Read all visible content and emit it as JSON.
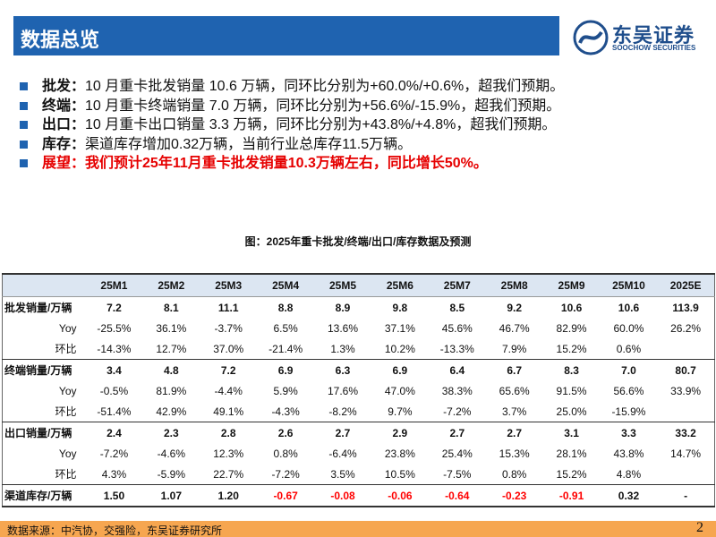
{
  "header": {
    "title": "数据总览",
    "logo_cn": "东吴证券",
    "logo_en": "SOOCHOW SECURITIES"
  },
  "bullets": [
    {
      "label": "批发：",
      "text": "10 月重卡批发销量 10.6 万辆，同环比分别为+60.0%/+0.6%，超我们预期。"
    },
    {
      "label": "终端：",
      "text": "10 月重卡终端销量 7.0 万辆，同环比分别为+56.6%/-15.9%，超我们预期。"
    },
    {
      "label": "出口：",
      "text": "10 月重卡出口销量 3.3 万辆，同环比分别为+43.8%/+4.8%，超我们预期。"
    },
    {
      "label": "库存：",
      "text": "渠道库存增加0.32万辆，当前行业总库存11.5万辆。"
    },
    {
      "label": "展望：",
      "text": "我们预计25年11月重卡批发销量10.3万辆左右，同比增长50%。",
      "emphasis_color": "#e60000"
    }
  ],
  "figure_caption": "图：2025年重卡批发/终端/出口/库存数据及预测",
  "table": {
    "columns": [
      null,
      "25M1",
      "25M2",
      "25M3",
      "25M4",
      "25M5",
      "25M6",
      "25M7",
      "25M8",
      "25M9",
      "25M10",
      "2025E"
    ],
    "groups": [
      {
        "rows": [
          [
            "批发销量/万辆",
            "7.2",
            "8.1",
            "11.1",
            "8.8",
            "8.9",
            "9.8",
            "8.5",
            "9.2",
            "10.6",
            "10.6",
            "113.9"
          ],
          [
            "Yoy",
            "-25.5%",
            "36.1%",
            "-3.7%",
            "6.5%",
            "13.6%",
            "37.1%",
            "45.6%",
            "46.7%",
            "82.9%",
            "60.0%",
            "26.2%"
          ],
          [
            "环比",
            "-14.3%",
            "12.7%",
            "37.0%",
            "-21.4%",
            "1.3%",
            "10.2%",
            "-13.3%",
            "7.9%",
            "15.2%",
            "0.6%",
            null
          ]
        ]
      },
      {
        "rows": [
          [
            "终端销量/万辆",
            "3.4",
            "4.8",
            "7.2",
            "6.9",
            "6.3",
            "6.9",
            "6.4",
            "6.7",
            "8.3",
            "7.0",
            "80.7"
          ],
          [
            "Yoy",
            "-0.5%",
            "81.9%",
            "-4.4%",
            "5.9%",
            "17.6%",
            "47.0%",
            "38.3%",
            "65.6%",
            "91.5%",
            "56.6%",
            "33.9%"
          ],
          [
            "环比",
            "-51.4%",
            "42.9%",
            "49.1%",
            "-4.3%",
            "-8.2%",
            "9.7%",
            "-7.2%",
            "3.7%",
            "25.0%",
            "-15.9%",
            null
          ]
        ]
      },
      {
        "rows": [
          [
            "出口销量/万辆",
            "2.4",
            "2.3",
            "2.8",
            "2.6",
            "2.7",
            "2.9",
            "2.7",
            "2.7",
            "3.1",
            "3.3",
            "33.2"
          ],
          [
            "Yoy",
            "-7.2%",
            "-4.6%",
            "12.3%",
            "0.8%",
            "-6.4%",
            "23.8%",
            "25.4%",
            "15.3%",
            "28.1%",
            "43.8%",
            "14.7%"
          ],
          [
            "环比",
            "4.3%",
            "-5.9%",
            "22.7%",
            "-7.2%",
            "3.5%",
            "10.5%",
            "-7.5%",
            "0.8%",
            "15.2%",
            "4.8%",
            null
          ]
        ]
      },
      {
        "negative_color": "#ff0000",
        "rows": [
          [
            "渠道库存/万辆",
            "1.50",
            "1.07",
            "1.20",
            "-0.67",
            "-0.08",
            "-0.06",
            "-0.64",
            "-0.23",
            "-0.91",
            "0.32",
            "-"
          ]
        ]
      }
    ]
  },
  "footer": {
    "source": "数据来源：中汽协，交强险，东吴证券研究所",
    "page": "2"
  }
}
